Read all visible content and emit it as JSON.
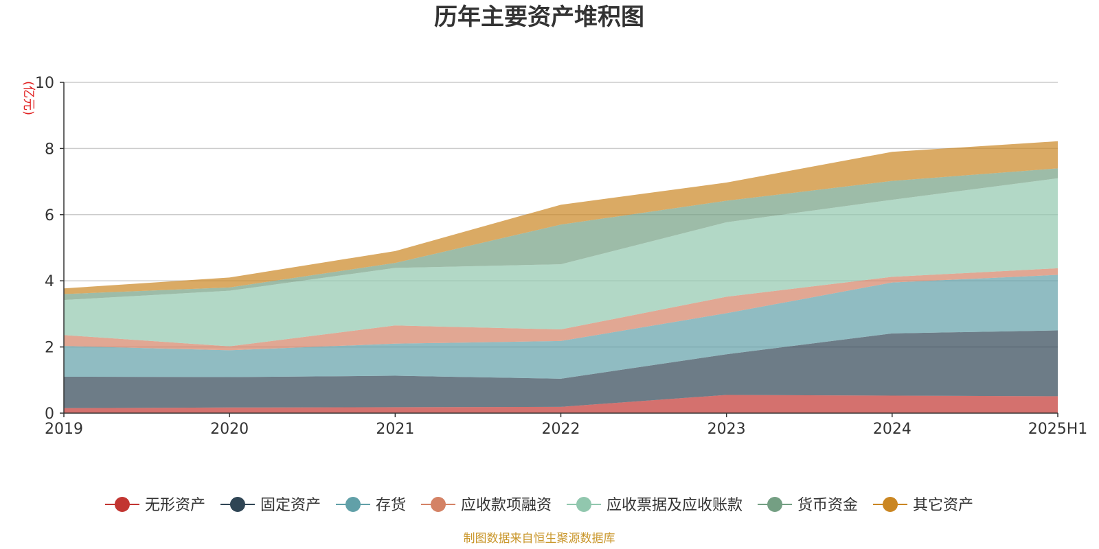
{
  "chart_data": {
    "type": "area",
    "stacked": true,
    "title": "历年主要资产堆积图",
    "ylabel": "(亿元)",
    "xlabel": "",
    "categories": [
      "2019",
      "2020",
      "2021",
      "2022",
      "2023",
      "2024",
      "2025H1"
    ],
    "ylim": [
      0,
      10
    ],
    "yticks": [
      0,
      2,
      4,
      6,
      8,
      10
    ],
    "grid": true,
    "legend_position": "bottom",
    "series": [
      {
        "name": "无形资产",
        "color": "#c23531",
        "values": [
          0.15,
          0.17,
          0.18,
          0.19,
          0.55,
          0.53,
          0.51
        ]
      },
      {
        "name": "固定资产",
        "color": "#2f4554",
        "values": [
          0.95,
          0.92,
          0.95,
          0.85,
          1.23,
          1.88,
          1.99
        ]
      },
      {
        "name": "存货",
        "color": "#61a0a8",
        "values": [
          0.93,
          0.81,
          0.97,
          1.14,
          1.24,
          1.54,
          1.68
        ]
      },
      {
        "name": "应收款项融资",
        "color": "#d48265",
        "values": [
          0.33,
          0.12,
          0.55,
          0.35,
          0.5,
          0.17,
          0.2
        ]
      },
      {
        "name": "应收票据及应收账款",
        "color": "#91c7ae",
        "values": [
          1.06,
          1.68,
          1.74,
          1.97,
          2.25,
          2.33,
          2.72
        ]
      },
      {
        "name": "货币资金",
        "color": "#749f83",
        "values": [
          0.18,
          0.1,
          0.15,
          1.2,
          0.65,
          0.57,
          0.3
        ]
      },
      {
        "name": "其它资产",
        "color": "#ca8622",
        "values": [
          0.17,
          0.3,
          0.36,
          0.6,
          0.55,
          0.88,
          0.82
        ]
      }
    ]
  },
  "footer": {
    "source": "制图数据来自恒生聚源数据库"
  }
}
